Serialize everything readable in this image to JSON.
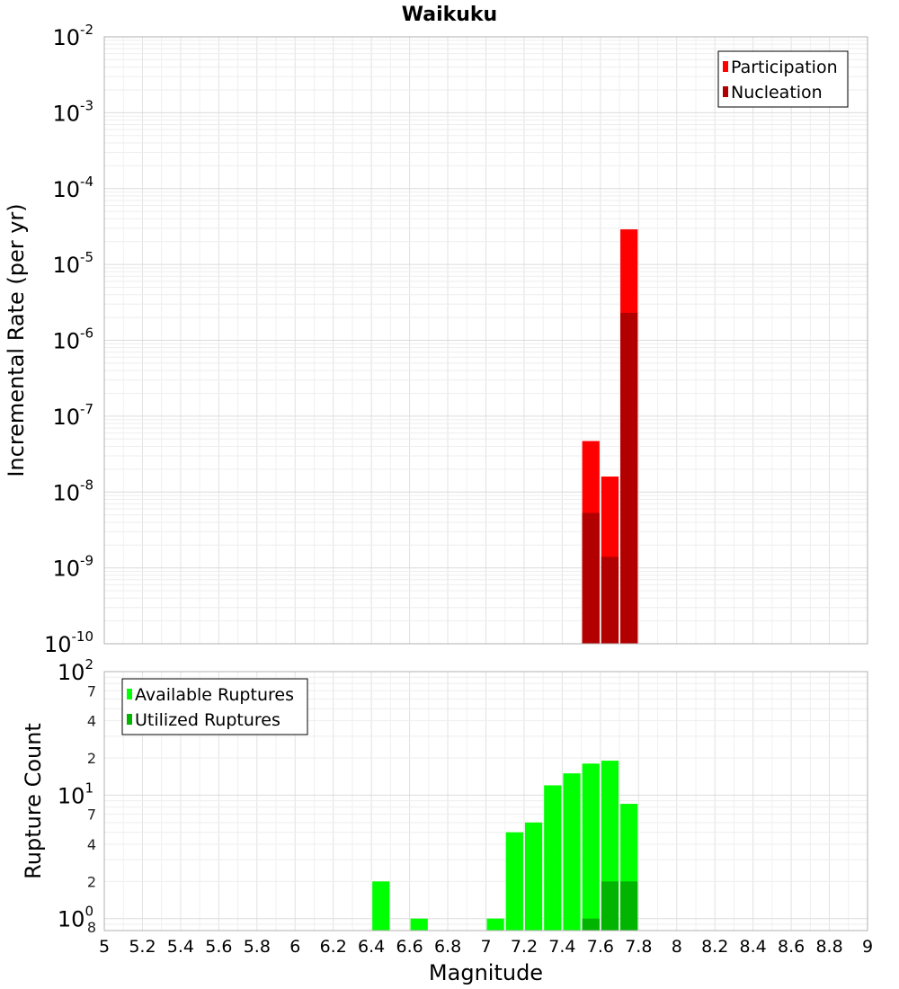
{
  "chart_data": [
    {
      "id": "rate",
      "type": "bar",
      "title": "Waikuku",
      "xlabel": "",
      "ylabel": "Incremental Rate (per yr)",
      "yscale": "log",
      "xlim": [
        5,
        9
      ],
      "ylim": [
        1e-10,
        0.01
      ],
      "bin_width": 0.1,
      "y_tick_labels": [
        {
          "base": "10",
          "exp": "-10"
        },
        {
          "base": "10",
          "exp": "-9"
        },
        {
          "base": "10",
          "exp": "-8"
        },
        {
          "base": "10",
          "exp": "-7"
        },
        {
          "base": "10",
          "exp": "-6"
        },
        {
          "base": "10",
          "exp": "-5"
        },
        {
          "base": "10",
          "exp": "-4"
        },
        {
          "base": "10",
          "exp": "-3"
        },
        {
          "base": "10",
          "exp": "-2"
        }
      ],
      "grid": true,
      "legend_position": "top-right",
      "series": [
        {
          "name": "Participation",
          "color": "#ff0000",
          "x": [
            7.55,
            7.65,
            7.75
          ],
          "values": [
            4.7e-08,
            1.6e-08,
            2.9e-05
          ]
        },
        {
          "name": "Nucleation",
          "color": "#b20000",
          "x": [
            7.55,
            7.65,
            7.75
          ],
          "values": [
            5.3e-09,
            1.4e-09,
            2.3e-06
          ]
        }
      ]
    },
    {
      "id": "count",
      "type": "bar",
      "title": "",
      "xlabel": "Magnitude",
      "ylabel": "Rupture Count",
      "yscale": "log",
      "xlim": [
        5,
        9
      ],
      "ylim": [
        0.8,
        100
      ],
      "bin_width": 0.1,
      "x_tick_labels": [
        "5",
        "5.2",
        "5.4",
        "5.6",
        "5.8",
        "6",
        "6.2",
        "6.4",
        "6.6",
        "6.8",
        "7",
        "7.2",
        "7.4",
        "7.6",
        "7.8",
        "8",
        "8.2",
        "8.4",
        "8.6",
        "8.8",
        "9"
      ],
      "y_major_labels": [
        {
          "base": "10",
          "exp": "0"
        },
        {
          "base": "10",
          "exp": "1"
        },
        {
          "base": "10",
          "exp": "2"
        }
      ],
      "y_minor_labels": [
        {
          "v": 0.8,
          "t": "8"
        },
        {
          "v": 2,
          "t": "2"
        },
        {
          "v": 4,
          "t": "4"
        },
        {
          "v": 7,
          "t": "7"
        },
        {
          "v": 20,
          "t": "2"
        },
        {
          "v": 40,
          "t": "4"
        },
        {
          "v": 70,
          "t": "7"
        }
      ],
      "grid": true,
      "legend_position": "top-left",
      "series": [
        {
          "name": "Available Ruptures",
          "color": "#00ff00",
          "x": [
            6.45,
            6.65,
            7.05,
            7.15,
            7.25,
            7.35,
            7.45,
            7.55,
            7.65,
            7.75
          ],
          "values": [
            2,
            1,
            1,
            5,
            6,
            12,
            15,
            18,
            19,
            8.5
          ]
        },
        {
          "name": "Utilized Ruptures",
          "color": "#00b400",
          "x": [
            7.55,
            7.65,
            7.75
          ],
          "values": [
            1,
            2,
            2
          ]
        }
      ]
    }
  ]
}
